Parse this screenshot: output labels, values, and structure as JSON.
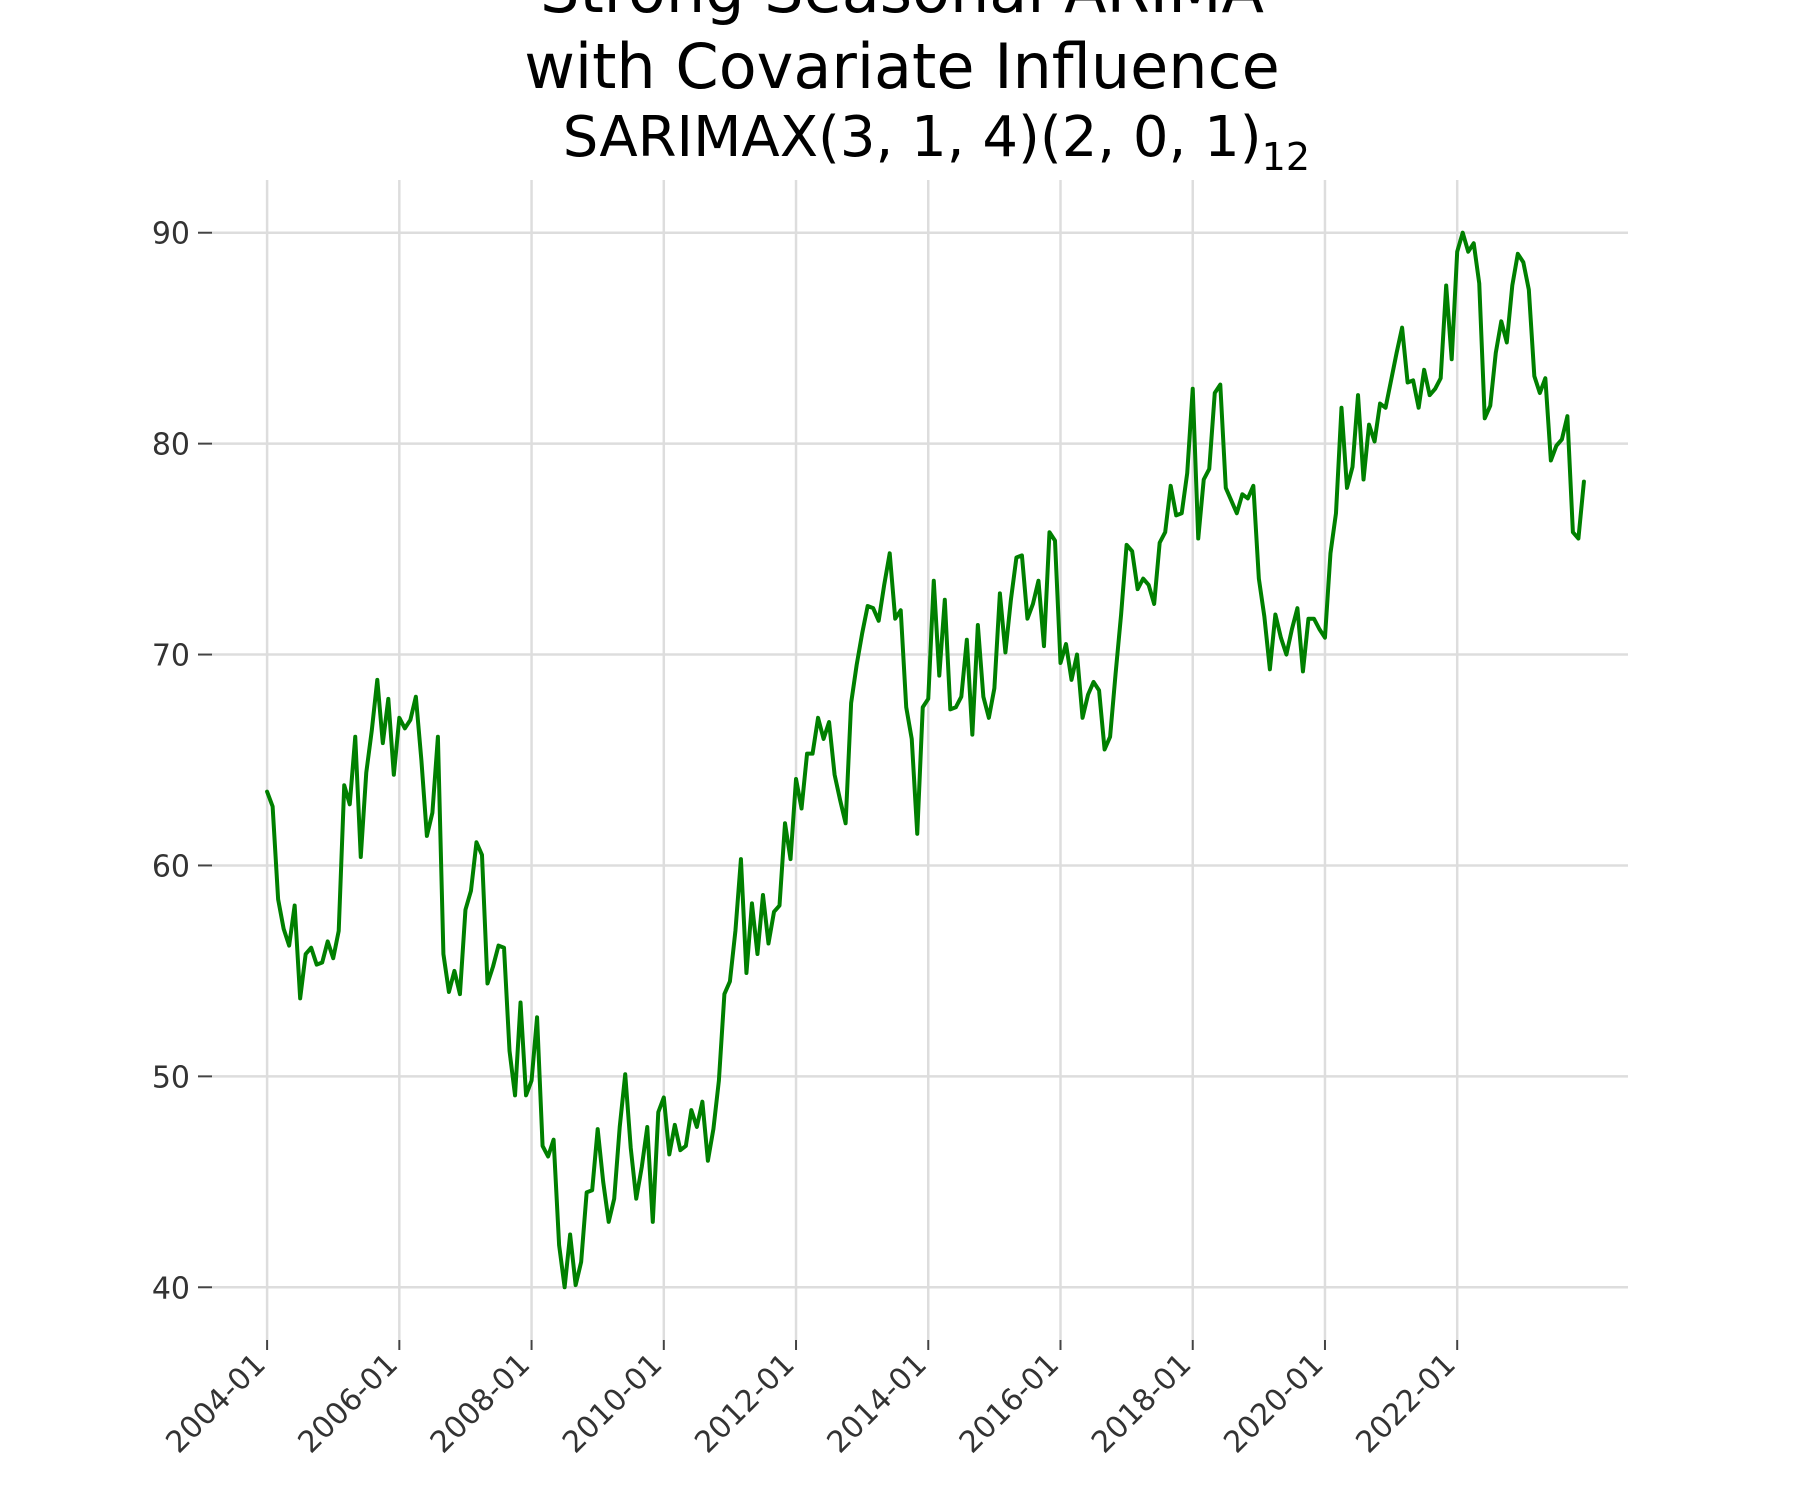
{
  "chart_data": {
    "type": "line",
    "title_lines": [
      "Strong Seasonal ARIMA",
      "with Covariate Influence"
    ],
    "subtitle_main": "SARIMAX(3, 1, 4)(2, 0, 1)",
    "subtitle_subscript": "12",
    "xlabel": "",
    "ylabel": "",
    "ylim": [
      37.5,
      92.5
    ],
    "xlim": [
      "2003-03",
      "2024-08"
    ],
    "grid": true,
    "yticks": [
      40,
      50,
      60,
      70,
      80,
      90
    ],
    "xticks": [
      "2004-01",
      "2006-01",
      "2008-01",
      "2010-01",
      "2012-01",
      "2014-01",
      "2016-01",
      "2018-01",
      "2020-01",
      "2022-01"
    ],
    "series_color": "#008000",
    "series": [
      {
        "start": "2004-01",
        "frequency": "monthly",
        "values": [
          63.5,
          62.8,
          58.4,
          57.0,
          56.2,
          58.1,
          53.7,
          55.8,
          56.1,
          55.3,
          55.4,
          56.4,
          55.6,
          56.9,
          63.8,
          62.9,
          66.1,
          60.4,
          64.4,
          66.4,
          68.8,
          65.8,
          67.9,
          64.3,
          67.0,
          66.5,
          66.9,
          68.0,
          65.0,
          61.4,
          62.5,
          66.1,
          55.8,
          54.0,
          55.0,
          53.9,
          57.9,
          58.8,
          61.1,
          60.5,
          54.4,
          55.2,
          56.2,
          56.1,
          51.2,
          49.1,
          53.5,
          49.1,
          49.8,
          52.8,
          46.7,
          46.2,
          47.0,
          42.0,
          40.0,
          42.5,
          40.1,
          41.2,
          44.5,
          44.6,
          47.5,
          45.0,
          43.1,
          44.2,
          47.6,
          50.1,
          46.6,
          44.2,
          45.7,
          47.6,
          43.1,
          48.3,
          49.0,
          46.3,
          47.7,
          46.5,
          46.7,
          48.4,
          47.6,
          48.8,
          46.0,
          47.5,
          49.8,
          53.9,
          54.5,
          56.9,
          60.3,
          54.9,
          58.2,
          55.8,
          58.6,
          56.3,
          57.8,
          58.1,
          62.0,
          60.3,
          64.1,
          62.7,
          65.3,
          65.3,
          67.0,
          66.0,
          66.8,
          64.3,
          63.1,
          62.0,
          67.7,
          69.5,
          71.0,
          72.3,
          72.2,
          71.6,
          73.3,
          74.8,
          71.7,
          72.1,
          67.5,
          66.0,
          61.5,
          67.5,
          67.9,
          73.5,
          69.0,
          72.6,
          67.4,
          67.5,
          68.0,
          70.7,
          66.2,
          71.4,
          68.0,
          67.0,
          68.4,
          72.9,
          70.1,
          72.6,
          74.6,
          74.7,
          71.7,
          72.4,
          73.5,
          70.4,
          75.8,
          75.4,
          69.6,
          70.5,
          68.8,
          70.0,
          67.0,
          68.1,
          68.7,
          68.3,
          65.5,
          66.1,
          69.1,
          71.9,
          75.2,
          74.9,
          73.1,
          73.6,
          73.3,
          72.4,
          75.3,
          75.8,
          78.0,
          76.6,
          76.7,
          78.6,
          82.6,
          75.5,
          78.3,
          78.8,
          82.4,
          82.8,
          77.9,
          77.3,
          76.7,
          77.6,
          77.4,
          78.0,
          73.6,
          71.8,
          69.3,
          71.9,
          70.8,
          70.0,
          71.2,
          72.2,
          69.2,
          71.7,
          71.7,
          71.2,
          70.8,
          74.8,
          76.7,
          81.7,
          77.9,
          78.9,
          82.3,
          78.3,
          80.9,
          80.1,
          81.9,
          81.7,
          83.0,
          84.3,
          85.5,
          82.9,
          83.0,
          81.7,
          83.5,
          82.3,
          82.6,
          83.1,
          87.5,
          84.0,
          89.1,
          90.0,
          89.1,
          89.5,
          87.6,
          81.2,
          81.8,
          84.3,
          85.8,
          84.8,
          87.5,
          89.0,
          88.6,
          87.3,
          83.2,
          82.4,
          83.1,
          79.2,
          79.9,
          80.2,
          81.3,
          75.8,
          75.5,
          78.2
        ]
      }
    ]
  }
}
